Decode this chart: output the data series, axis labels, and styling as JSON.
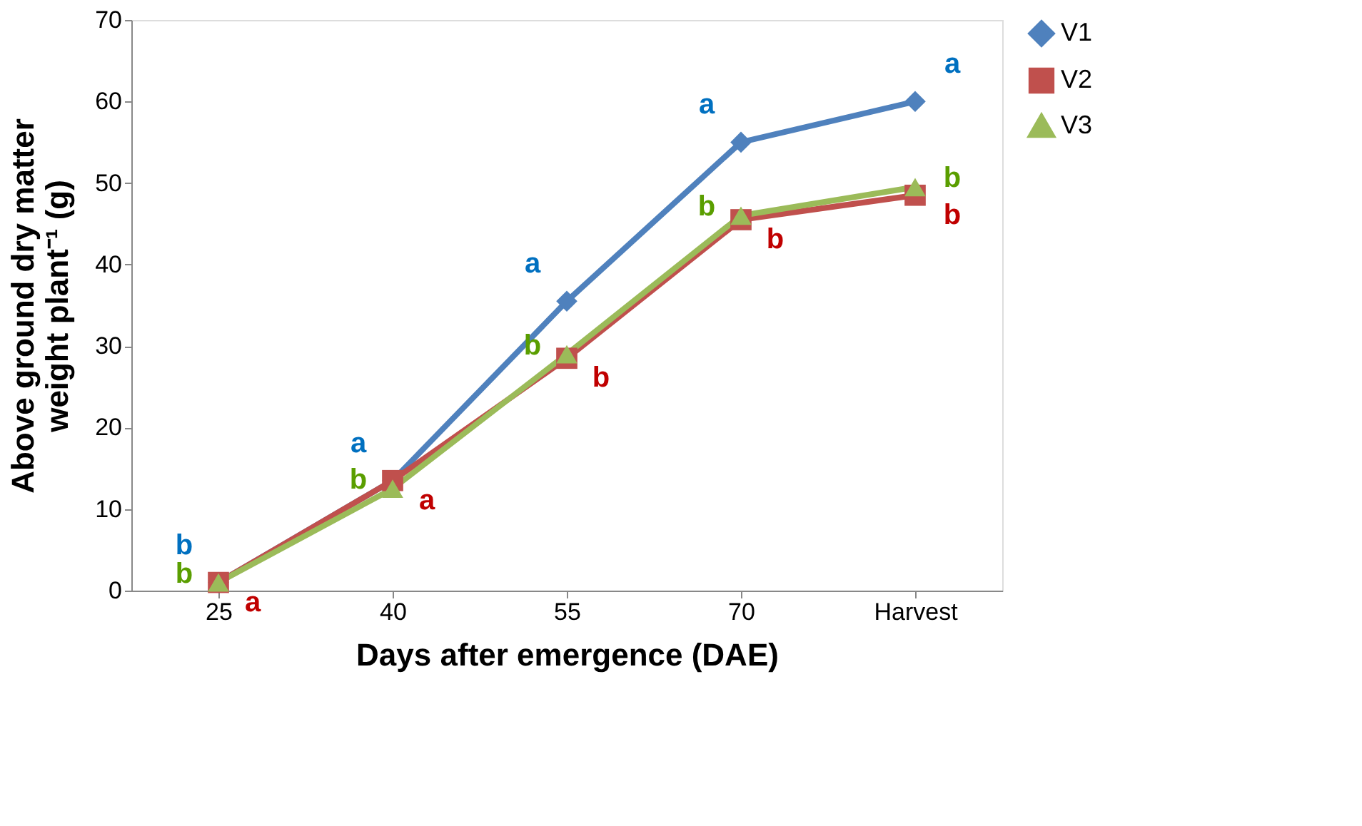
{
  "chart_data": {
    "type": "line",
    "xlabel": "Days after emergence (DAE)",
    "ylabel": "Above ground dry matter weight plant⁻¹ (g)",
    "categories": [
      "25",
      "40",
      "55",
      "70",
      "Harvest"
    ],
    "ylim": [
      0,
      70
    ],
    "yticks": [
      0,
      10,
      20,
      30,
      40,
      50,
      60,
      70
    ],
    "grid": false,
    "legend": "right",
    "line_style": "solid",
    "series": [
      {
        "name": "V1",
        "color": "#4f81bd",
        "marker": "diamond",
        "values": [
          1,
          13.5,
          35.5,
          55,
          60
        ],
        "value_labels": [
          "b",
          "a",
          "a",
          "a",
          "a"
        ]
      },
      {
        "name": "V2",
        "color": "#c0504d",
        "marker": "square",
        "values": [
          1,
          13.5,
          28.5,
          45.5,
          48.5
        ],
        "value_labels": [
          "a",
          "a",
          "b",
          "b",
          "b"
        ]
      },
      {
        "name": "V3",
        "color": "#9bbb59",
        "marker": "triangle",
        "values": [
          1,
          12.5,
          29,
          46,
          49.5
        ],
        "value_labels": [
          "b",
          "b",
          "b",
          "b",
          "b"
        ]
      }
    ]
  }
}
